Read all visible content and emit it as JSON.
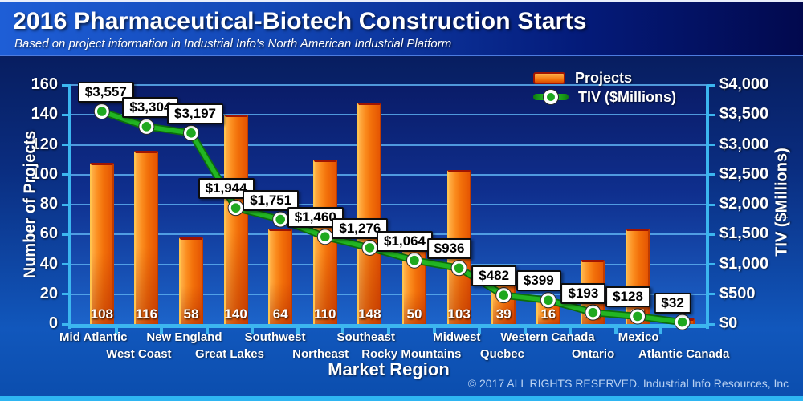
{
  "header": {
    "title": "2016 Pharmaceutical-Biotech Construction Starts",
    "subtitle": "Based on project information in Industrial Info's North American Industrial Platform"
  },
  "chart_data": {
    "type": "combo bar+line, dual y-axis",
    "categories": [
      "Mid Atlantic",
      "West Coast",
      "New England",
      "Great Lakes",
      "Southwest",
      "Northeast",
      "Southeast",
      "Rocky Mountains",
      "Midwest",
      "Quebec",
      "Western Canada",
      "Ontario",
      "Mexico",
      "Atlantic Canada"
    ],
    "series": [
      {
        "name": "Projects",
        "type": "bar",
        "axis": "left",
        "values": [
          108,
          116,
          58,
          140,
          64,
          110,
          148,
          50,
          103,
          39,
          16,
          43,
          64,
          4
        ]
      },
      {
        "name": "TIV ($Millions)",
        "type": "line",
        "axis": "right",
        "values": [
          3557,
          3304,
          3197,
          1944,
          1751,
          1460,
          1276,
          1064,
          936,
          482,
          399,
          193,
          128,
          32
        ],
        "value_labels": [
          "$3,557",
          "$3,304",
          "$3,197",
          "$1,944",
          "$1,751",
          "$1,460",
          "$1,276",
          "$1,064",
          "$936",
          "$482",
          "$399",
          "$193",
          "$128",
          "$32"
        ]
      }
    ],
    "left_axis": {
      "label": "Number of Projects",
      "lim": [
        0,
        160
      ],
      "ticks": [
        "0",
        "20",
        "40",
        "60",
        "80",
        "100",
        "120",
        "140",
        "160"
      ]
    },
    "right_axis": {
      "label": "TIV ($Millions)",
      "lim": [
        0,
        4000
      ],
      "ticks": [
        "$0",
        "$500",
        "$1,000",
        "$1,500",
        "$2,000",
        "$2,500",
        "$3,000",
        "$3,500",
        "$4,000"
      ]
    },
    "x_axis": {
      "label": "Market Region",
      "stagger": true
    },
    "grid": true,
    "legend": {
      "position": "top-right",
      "entries": [
        "Projects",
        "TIV ($Millions)"
      ]
    }
  },
  "footer": {
    "copyright": "© 2017 ALL RIGHTS RESERVED. Industrial Info Resources, Inc"
  },
  "colors": {
    "accent_axis": "#3cb6ef",
    "bar_light": "#ffb24a",
    "bar_dark": "#e55603",
    "bar_border": "#a01502",
    "line_green": "#22b522",
    "header_blue": "#1e5ed6",
    "deep_navy": "#02094e",
    "strip_cyan": "#2eb6f2"
  }
}
